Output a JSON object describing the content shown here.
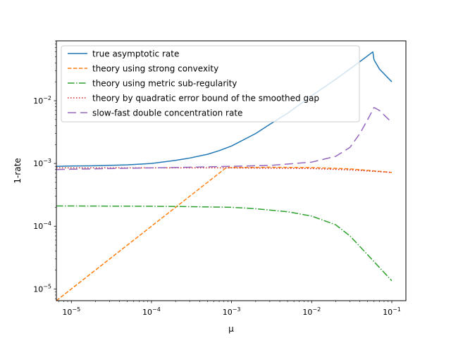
{
  "chart_data": {
    "type": "line",
    "xlabel": "μ",
    "ylabel": "1-rate",
    "xscale": "log",
    "yscale": "log",
    "xlim": [
      6.5e-06,
      0.15
    ],
    "ylim": [
      6.5e-06,
      0.09
    ],
    "x_ticks": [
      {
        "value": 1e-05,
        "base": "10",
        "exp": "−5"
      },
      {
        "value": 0.0001,
        "base": "10",
        "exp": "−4"
      },
      {
        "value": 0.001,
        "base": "10",
        "exp": "−3"
      },
      {
        "value": 0.01,
        "base": "10",
        "exp": "−2"
      },
      {
        "value": 0.1,
        "base": "10",
        "exp": "−1"
      }
    ],
    "y_ticks": [
      {
        "value": 1e-05,
        "base": "10",
        "exp": "−5"
      },
      {
        "value": 0.0001,
        "base": "10",
        "exp": "−4"
      },
      {
        "value": 0.001,
        "base": "10",
        "exp": "−3"
      },
      {
        "value": 0.01,
        "base": "10",
        "exp": "−2"
      }
    ],
    "grid": false,
    "legend_position": "upper-left",
    "series": [
      {
        "name": "true asymptotic rate",
        "color": "#1f77b4",
        "dash": "solid",
        "x": [
          6.5e-06,
          1e-05,
          2e-05,
          5e-05,
          0.0001,
          0.0002,
          0.0003,
          0.0005,
          0.0007,
          0.001,
          0.002,
          0.003,
          0.005,
          0.01,
          0.02,
          0.04,
          0.058,
          0.06,
          0.07,
          0.1
        ],
        "y": [
          0.0009,
          0.00091,
          0.00092,
          0.00095,
          0.001,
          0.00112,
          0.00122,
          0.0014,
          0.0016,
          0.0019,
          0.003,
          0.0042,
          0.0063,
          0.012,
          0.022,
          0.042,
          0.06,
          0.045,
          0.032,
          0.02
        ]
      },
      {
        "name": "theory using strong convexity",
        "color": "#ff7f0e",
        "dash": "dashed",
        "x": [
          6.5e-06,
          1e-05,
          0.0001,
          0.00085,
          0.001,
          0.003,
          0.01,
          0.03,
          0.1
        ],
        "y": [
          6.5e-06,
          1e-05,
          0.0001,
          0.00085,
          0.00086,
          0.00087,
          0.00086,
          0.00082,
          0.00072
        ]
      },
      {
        "name": "theory using metric sub-regularity",
        "color": "#2ca02c",
        "dash": "dashdot",
        "x": [
          6.5e-06,
          1e-05,
          0.0001,
          0.0003,
          0.001,
          0.002,
          0.005,
          0.01,
          0.02,
          0.03,
          0.05,
          0.07,
          0.1
        ],
        "y": [
          0.00021,
          0.00021,
          0.000208,
          0.000205,
          0.0002,
          0.00019,
          0.00017,
          0.000145,
          0.000105,
          7e-05,
          3.5e-05,
          2.2e-05,
          1.35e-05
        ]
      },
      {
        "name": "theory by quadratic error bound of the smoothed gap",
        "color": "#d62728",
        "dash": "dotted",
        "x": [
          6.5e-06,
          1e-05,
          0.0001,
          0.001,
          0.01,
          0.03,
          0.1
        ],
        "y": [
          0.00085,
          0.00085,
          0.00085,
          0.00085,
          0.00083,
          0.00079,
          0.00072
        ]
      },
      {
        "name": "slow-fast double concentration rate",
        "color": "#9467bd",
        "dash": "longdash",
        "x": [
          6.5e-06,
          1e-05,
          3e-05,
          0.0001,
          0.0003,
          0.001,
          0.003,
          0.01,
          0.02,
          0.03,
          0.04,
          0.05,
          0.06,
          0.07,
          0.1
        ],
        "y": [
          0.0008,
          0.00081,
          0.00083,
          0.00085,
          0.00087,
          0.0009,
          0.00093,
          0.00105,
          0.0013,
          0.0018,
          0.003,
          0.005,
          0.0078,
          0.007,
          0.0045
        ]
      }
    ]
  }
}
